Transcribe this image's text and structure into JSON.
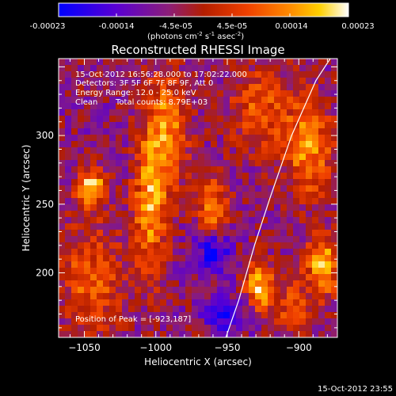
{
  "colorbar": {
    "ticks": [
      "-0.00023",
      "-0.00014",
      "-4.5e-05",
      "4.5e-05",
      "0.00014",
      "0.00023"
    ],
    "unit_main": "(photons cm",
    "unit_exp1": "-2",
    "unit_mid": " s",
    "unit_exp2": "-1",
    "unit_tail": " asec",
    "unit_exp3": "-2",
    "unit_close": ")"
  },
  "title": "Reconstructed RHESSI Image",
  "info": {
    "line1": "15-Oct-2012 16:56:28.000 to 17:02:22.000",
    "line2": "Detectors: 3F 5F 6F 7F 8F 9F, Att 0",
    "line3": "Energy Range: 12.0 - 25.0 keV",
    "line4_a": "Clean",
    "line4_b": "Total counts: 8.79E+03",
    "peak": "Position of Peak = [-923,187]"
  },
  "footer_timestamp": "15-Oct-2012 23:55",
  "chart_data": {
    "type": "heatmap",
    "title": "Reconstructed RHESSI Image",
    "xlabel": "Heliocentric X (arcsec)",
    "ylabel": "Heliocentric Y (arcsec)",
    "xlim": [
      -1068,
      -873
    ],
    "ylim": [
      153,
      356
    ],
    "xticks": [
      -1050,
      -1000,
      -950,
      -900
    ],
    "xtick_labels": [
      "−1050",
      "−1000",
      "−950",
      "−900"
    ],
    "yticks": [
      200,
      250,
      300
    ],
    "ytick_labels": [
      "200",
      "250",
      "300"
    ],
    "colorbar_range": [
      -0.00023,
      0.00023
    ],
    "colormap": [
      "#0000ff",
      "#5a00d2",
      "#8c1e78",
      "#b41e00",
      "#f04000",
      "#ff8c00",
      "#ffd000",
      "#ffffff"
    ],
    "peak_position": [
      -923,
      187
    ],
    "limb_curve": [
      [
        -951,
        153
      ],
      [
        -942,
        180
      ],
      [
        -931,
        220
      ],
      [
        -920,
        255
      ],
      [
        -905,
        300
      ],
      [
        -888,
        340
      ],
      [
        -878,
        356
      ]
    ],
    "sources": [
      {
        "x": -1045,
        "y": 262,
        "width": 7,
        "height": 9,
        "amplitude": 1.0
      },
      {
        "x": -1004,
        "y": 250,
        "width": 8,
        "height": 36,
        "amplitude": 0.8
      },
      {
        "x": -992,
        "y": 305,
        "width": 10,
        "height": 30,
        "amplitude": 0.7
      },
      {
        "x": -960,
        "y": 248,
        "width": 7,
        "height": 15,
        "amplitude": 0.7
      },
      {
        "x": -1045,
        "y": 195,
        "width": 15,
        "height": 30,
        "amplitude": 0.55
      },
      {
        "x": -927,
        "y": 190,
        "width": 7,
        "height": 12,
        "amplitude": 0.9
      },
      {
        "x": -883,
        "y": 205,
        "width": 8,
        "height": 15,
        "amplitude": 0.9
      },
      {
        "x": -893,
        "y": 290,
        "width": 12,
        "height": 25,
        "amplitude": 0.75
      },
      {
        "x": -927,
        "y": 320,
        "width": 15,
        "height": 22,
        "amplitude": 0.5
      },
      {
        "x": -960,
        "y": 215,
        "width": 8,
        "height": 10,
        "amplitude": -0.7
      },
      {
        "x": -950,
        "y": 170,
        "width": 10,
        "height": 8,
        "amplitude": -0.6
      },
      {
        "x": -905,
        "y": 175,
        "width": 10,
        "height": 15,
        "amplitude": 0.45
      }
    ]
  }
}
